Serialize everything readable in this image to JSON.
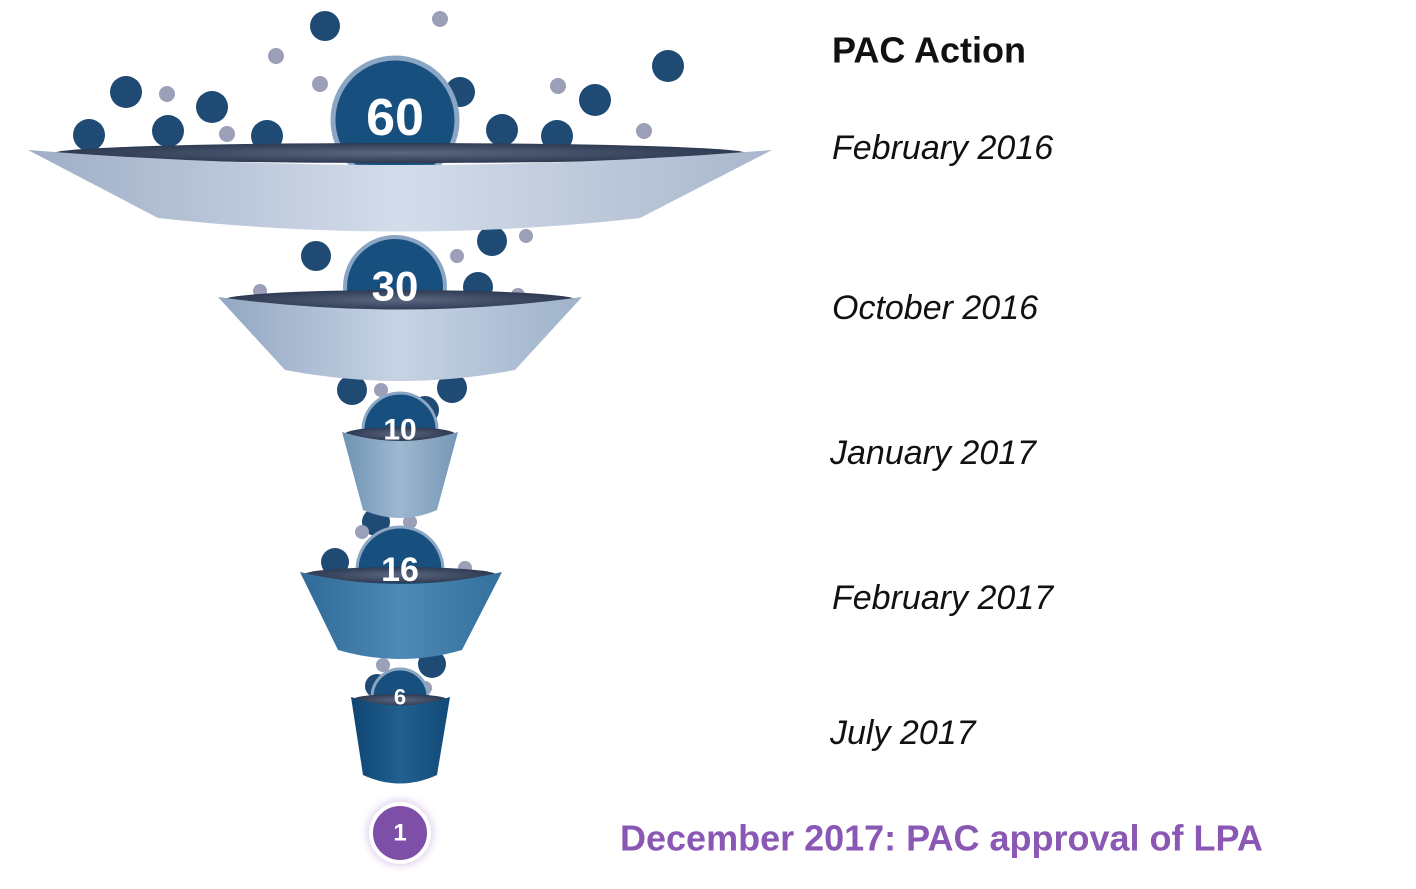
{
  "heading": "PAC Action",
  "stages": [
    {
      "count": 60,
      "date": "February 2016"
    },
    {
      "count": 30,
      "date": "October 2016"
    },
    {
      "count": 10,
      "date": "January 2017"
    },
    {
      "count": 16,
      "date": "February 2017"
    },
    {
      "count": 6,
      "date": "July 2017"
    }
  ],
  "outcome": {
    "count": 1,
    "text": "December 2017: PAC approval of LPA"
  }
}
